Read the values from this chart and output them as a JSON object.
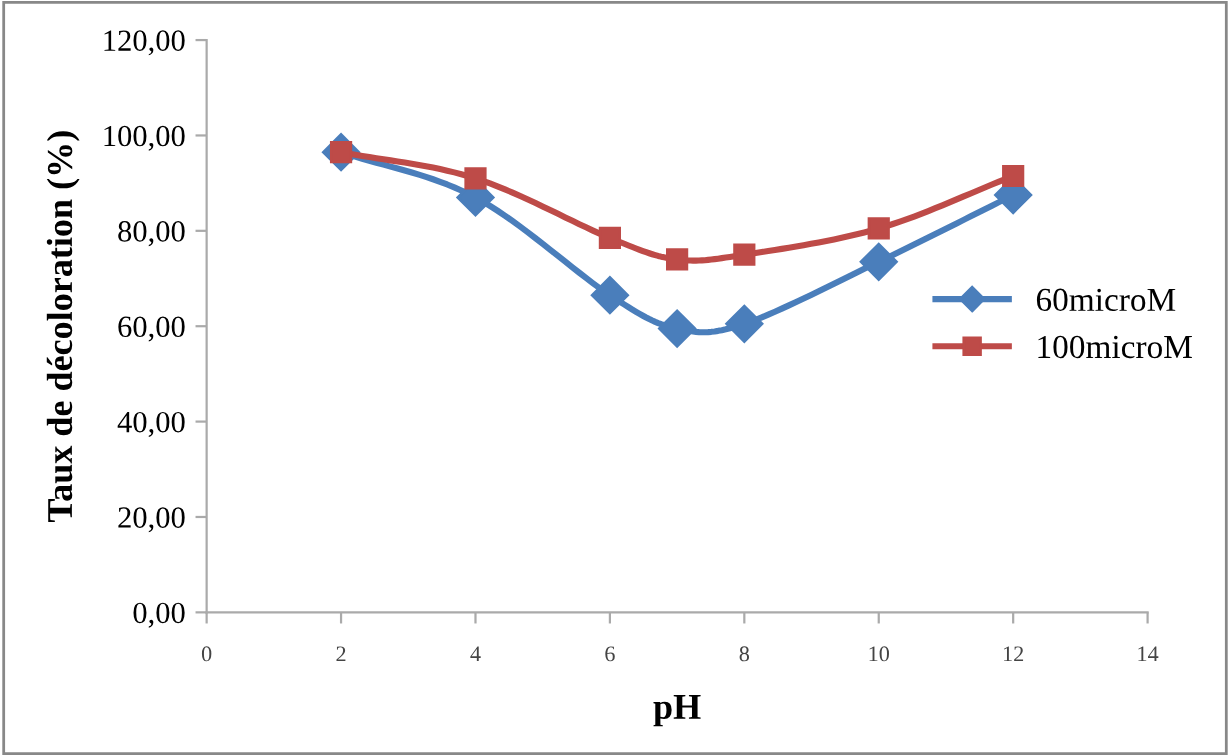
{
  "chart_data": {
    "type": "line",
    "xlabel": "pH",
    "ylabel": "Taux de décoloration (%)",
    "x": [
      2,
      4,
      6,
      7,
      8,
      10,
      12
    ],
    "series": [
      {
        "name": "60microM",
        "color": "#4a7ebb",
        "marker": "diamond",
        "values": [
          96.5,
          87,
          66.5,
          59.5,
          60.5,
          73.5,
          87.5
        ]
      },
      {
        "name": "100microM",
        "color": "#be4b48",
        "marker": "square",
        "values": [
          96.5,
          91,
          78.5,
          74,
          75,
          80.5,
          91.5
        ]
      }
    ],
    "xlim": [
      0,
      14
    ],
    "xticks": [
      0,
      2,
      4,
      6,
      8,
      10,
      12,
      14
    ],
    "ylim": [
      0,
      120
    ],
    "yticks": [
      {
        "value": 0,
        "label": "0,00"
      },
      {
        "value": 20,
        "label": "20,00"
      },
      {
        "value": 40,
        "label": "40,00"
      },
      {
        "value": 60,
        "label": "60,00"
      },
      {
        "value": 80,
        "label": "80,00"
      },
      {
        "value": 100,
        "label": "100,00"
      },
      {
        "value": 120,
        "label": "120,00"
      }
    ],
    "grid": false,
    "legend": "right",
    "line_style": "solid"
  }
}
